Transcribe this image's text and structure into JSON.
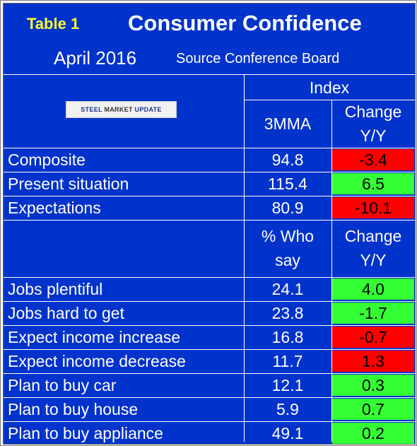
{
  "header": {
    "table_label": "Table 1",
    "title": "Consumer Confidence",
    "date": "April 2016",
    "source": "Source Conference Board"
  },
  "logo": {
    "text_left": "STEEL ",
    "text_mid": "MARKET",
    "text_right": " UPDATE"
  },
  "columns": {
    "group_header": "Index",
    "section1": {
      "value_header": "3MMA",
      "change_header_line1": "Change",
      "change_header_line2": "Y/Y"
    },
    "section2": {
      "value_header_line1": "% Who",
      "value_header_line2": "say",
      "change_header_line1": "Change",
      "change_header_line2": "Y/Y"
    }
  },
  "section1_rows": [
    {
      "label": "Composite",
      "value": "94.8",
      "change": "-3.4",
      "status": "negative"
    },
    {
      "label": "Present situation",
      "value": "115.4",
      "change": "6.5",
      "status": "positive"
    },
    {
      "label": "Expectations",
      "value": "80.9",
      "change": "-10.1",
      "status": "negative"
    }
  ],
  "section2_rows": [
    {
      "label": "Jobs plentiful",
      "value": "24.1",
      "change": "4.0",
      "status": "positive"
    },
    {
      "label": "Jobs hard to get",
      "value": "23.8",
      "change": "-1.7",
      "status": "positive"
    },
    {
      "label": "Expect income increase",
      "value": "16.8",
      "change": "-0.7",
      "status": "negative"
    },
    {
      "label": "Expect income decrease",
      "value": "11.7",
      "change": "1.3",
      "status": "negative"
    },
    {
      "label": "Plan to buy car",
      "value": "12.1",
      "change": "0.3",
      "status": "positive"
    },
    {
      "label": "Plan to buy house",
      "value": "5.9",
      "change": "0.7",
      "status": "positive"
    },
    {
      "label": "Plan to buy appliance",
      "value": "49.1",
      "change": "0.2",
      "status": "positive"
    }
  ],
  "colors": {
    "background": "#0033cc",
    "positive": "#33ff33",
    "negative": "#ff0000",
    "table_label": "#ffff33"
  }
}
